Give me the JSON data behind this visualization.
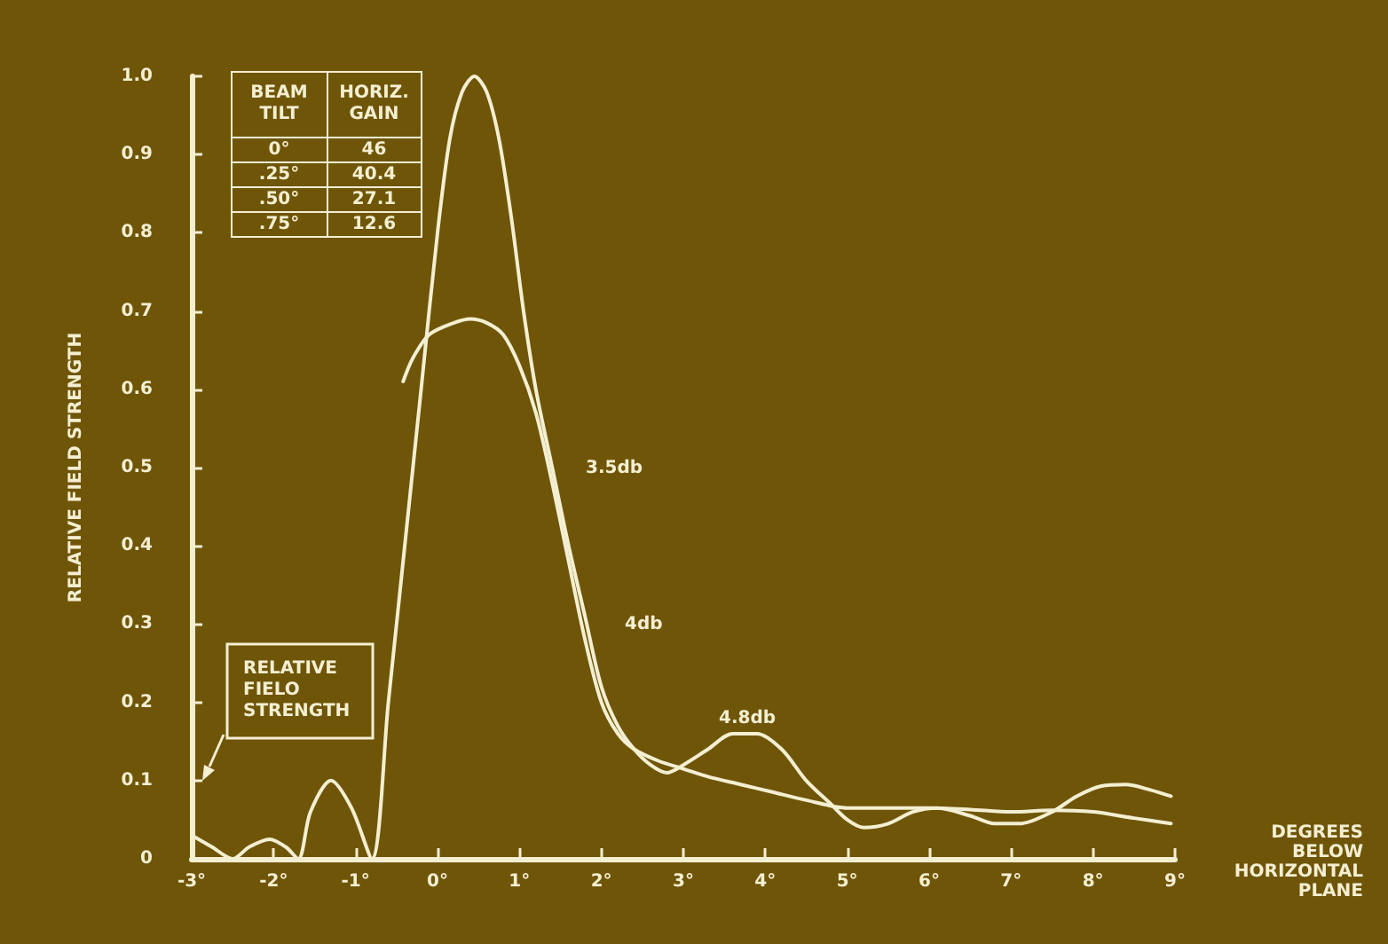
{
  "chart_data": {
    "type": "line",
    "xlabel": "DEGREES\nBELOW\nHORIZONTAL\nPLANE",
    "ylabel": "RELATIVE FIELD STRENGTH",
    "xlim": [
      -3,
      9
    ],
    "xticks": [
      {
        "value": -3,
        "label": "-3°"
      },
      {
        "value": -2,
        "label": "-2°"
      },
      {
        "value": -1,
        "label": "-1°"
      },
      {
        "value": 0,
        "label": "0°"
      },
      {
        "value": 1,
        "label": "1°"
      },
      {
        "value": 2,
        "label": "2°"
      },
      {
        "value": 3,
        "label": "3°"
      },
      {
        "value": 4,
        "label": "4°"
      },
      {
        "value": 5,
        "label": "5°"
      },
      {
        "value": 6,
        "label": "6°"
      },
      {
        "value": 7,
        "label": "7°"
      },
      {
        "value": 8,
        "label": "8°"
      },
      {
        "value": 9,
        "label": "9°"
      }
    ],
    "ylim": [
      0,
      1
    ],
    "yticks": [
      0,
      0.1,
      0.2,
      0.3,
      0.4,
      0.5,
      0.6,
      0.7,
      0.8,
      0.9,
      {
        "value": 1,
        "label": "1.0"
      }
    ],
    "grid": false,
    "marker": "none",
    "line_style": "solid",
    "series": [
      {
        "color": "#f4efd2",
        "x": [
          -3,
          -2.75,
          -2.5,
          -2.3,
          -2.05,
          -1.85,
          -1.7,
          -1.55,
          -1.3,
          -1.05,
          -0.8,
          -0.6,
          -0.4,
          -0.2,
          0,
          0.15,
          0.3,
          0.45,
          0.6,
          0.75,
          0.9,
          1.05,
          1.2,
          1.4,
          1.6,
          1.8,
          2,
          2.2,
          2.4,
          2.6,
          2.8,
          3,
          3.3,
          3.6,
          3.9,
          4.2,
          4.5,
          4.8,
          5,
          5.2,
          5.5,
          5.8,
          6.1,
          6.5,
          6.8,
          7.1,
          7.5,
          7.8,
          8.1,
          8.4,
          8.7,
          8.95
        ],
        "values": [
          0.03,
          0.015,
          0,
          0.015,
          0.025,
          0.015,
          0,
          0.06,
          0.1,
          0.065,
          0,
          0.2,
          0.4,
          0.6,
          0.8,
          0.92,
          0.98,
          1,
          0.98,
          0.92,
          0.82,
          0.7,
          0.6,
          0.5,
          0.4,
          0.31,
          0.22,
          0.17,
          0.14,
          0.12,
          0.11,
          0.12,
          0.14,
          0.16,
          0.16,
          0.14,
          0.1,
          0.07,
          0.05,
          0.04,
          0.045,
          0.06,
          0.065,
          0.055,
          0.045,
          0.045,
          0.06,
          0.08,
          0.093,
          0.095,
          0.088,
          0.08
        ]
      },
      {
        "color": "#f4efd2",
        "x": [
          -0.42,
          -0.3,
          -0.1,
          0.2,
          0.4,
          0.6,
          0.8,
          1,
          1.2,
          1.4,
          1.6,
          1.8,
          2,
          2.2,
          2.4,
          2.7,
          3,
          3.3,
          3.7,
          4.1,
          4.5,
          5,
          5.5,
          6,
          6.5,
          7,
          7.5,
          8,
          8.5,
          8.95
        ],
        "values": [
          0.61,
          0.64,
          0.67,
          0.685,
          0.69,
          0.685,
          0.67,
          0.63,
          0.57,
          0.48,
          0.38,
          0.28,
          0.2,
          0.16,
          0.14,
          0.125,
          0.115,
          0.105,
          0.095,
          0.085,
          0.075,
          0.065,
          0.065,
          0.065,
          0.063,
          0.06,
          0.062,
          0.06,
          0.052,
          0.045
        ]
      }
    ],
    "annotations": [
      "3.5db",
      "4db",
      "4.8db",
      "RELATIVE\nFIELO\nSTRENGTH",
      "BEAM\nTILT",
      "HORIZ.\nGAIN",
      "0°",
      "46",
      ".25°",
      "40.4",
      ".50°",
      "27.1",
      ".75°",
      "12.6"
    ]
  }
}
